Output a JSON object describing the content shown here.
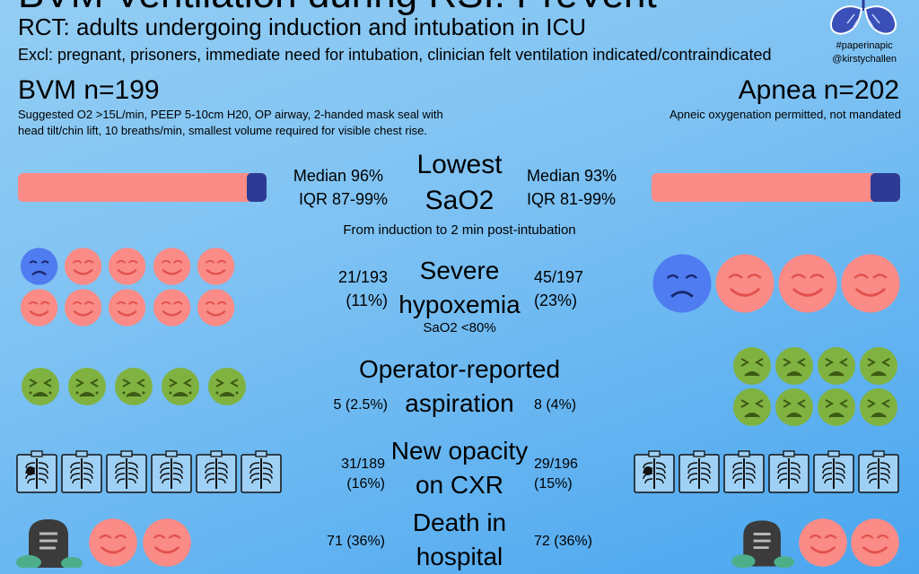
{
  "header": {
    "title": "BVM Ventilation during RSI: PreVent",
    "subtitle": "RCT: adults undergoing induction and intubation in ICU",
    "exclusion": "Excl: pregnant, prisoners, immediate need for intubation, clinician felt ventilation indicated/contraindicated",
    "hashtag": "#paperinapic",
    "handle": "@kirstychallen"
  },
  "bvm": {
    "title": "BVM n=199",
    "description": "Suggested O2 >15L/min, PEEP 5-10cm H20, OP airway, 2-handed mask seal with head tilt/chin lift, 10 breaths/min, smallest volume required for visible chest rise.",
    "sao2_median": "Median 96%",
    "sao2_iqr": "IQR 87-99%",
    "hypox_count": "21/193",
    "hypox_pct": "(11%)",
    "aspiration": "5 (2.5%)",
    "cxr_count": "31/189",
    "cxr_pct": "(16%)",
    "death": "71 (36%)"
  },
  "apnea": {
    "title": "Apnea n=202",
    "description": "Apneic oxygenation permitted, not mandated",
    "sao2_median": "Median 93%",
    "sao2_iqr": "IQR 81-99%",
    "hypox_count": "45/197",
    "hypox_pct": "(23%)",
    "aspiration": "8 (4%)",
    "cxr_count": "29/196",
    "cxr_pct": "(15%)",
    "death": "72 (36%)"
  },
  "outcomes": {
    "sao2_title": "Lowest SaO2",
    "sao2_note": "From induction to 2 min post-intubation",
    "hypox_title": "Severe hypoxemia",
    "hypox_note": "SaO2 <80%",
    "aspiration_title": "Operator-reported aspiration",
    "cxr_title": "New opacity on CXR",
    "death_title": "Death in hospital"
  },
  "bars": {
    "bvm_fill_fraction": 0.04,
    "apnea_fill_fraction": 0.07
  },
  "colors": {
    "pink": "#fa8b86",
    "navy": "#2e3b94",
    "sad_blue": "#4f7cf0",
    "green": "#7fb241"
  },
  "icons": [
    "happy-face-icon",
    "sad-face-icon",
    "nauseated-face-icon",
    "chest-xray-icon",
    "headstone-icon",
    "lungs-logo-icon"
  ]
}
